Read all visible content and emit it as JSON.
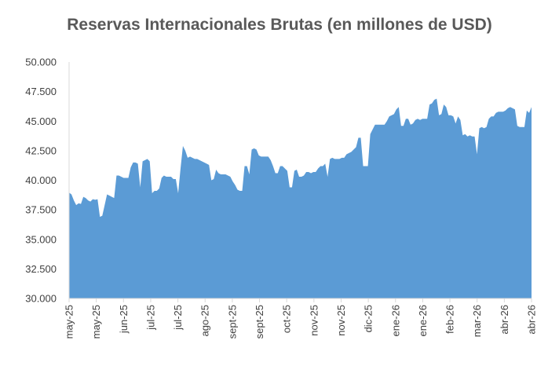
{
  "chart_data": {
    "type": "area",
    "title": "Reservas Internacionales Brutas (en millones de USD)",
    "xlabel": "",
    "ylabel": "",
    "ylim": [
      30000,
      50000
    ],
    "y_ticks": [
      "30.000",
      "32.500",
      "35.000",
      "37.500",
      "40.000",
      "42.500",
      "45.000",
      "47.500",
      "50.000"
    ],
    "y_tick_values": [
      30000,
      32500,
      35000,
      37500,
      40000,
      42500,
      45000,
      47500,
      50000
    ],
    "x_tick_labels": [
      "may-25",
      "may-25",
      "jun-25",
      "jul-25",
      "jul-25",
      "ago-25",
      "sept-25",
      "sept-25",
      "oct-25",
      "nov-25",
      "nov-25",
      "dic-25",
      "ene-26",
      "ene-26",
      "feb-26",
      "mar-26",
      "abr-26",
      "abr-26"
    ],
    "grid": false,
    "legend": "none",
    "fill_color": "#5B9BD5",
    "series": [
      {
        "values": [
          38950,
          38800,
          38300,
          37900,
          38050,
          38000,
          38600,
          38500,
          38300,
          38200,
          38400,
          38350,
          38400,
          36900,
          37000,
          37900,
          38800,
          38700,
          38600,
          38500,
          40400,
          40400,
          40300,
          40200,
          40200,
          40200,
          41100,
          41500,
          41500,
          41400,
          39400,
          41600,
          41700,
          41800,
          41600,
          38900,
          39100,
          39100,
          39300,
          40200,
          40400,
          40300,
          40300,
          40300,
          40100,
          40100,
          38900,
          41000,
          42900,
          42500,
          41900,
          42000,
          41900,
          41800,
          41800,
          41700,
          41600,
          41500,
          41400,
          41300,
          40000,
          40100,
          40900,
          40600,
          40500,
          40500,
          40500,
          40400,
          40300,
          39900,
          39600,
          39200,
          39100,
          39100,
          41200,
          41200,
          40500,
          42600,
          42700,
          42600,
          42100,
          42000,
          42000,
          42000,
          42000,
          41700,
          41200,
          40600,
          40600,
          41200,
          41200,
          41000,
          40800,
          39400,
          39400,
          40800,
          40900,
          40300,
          40300,
          40400,
          40700,
          40700,
          40600,
          40700,
          40700,
          41000,
          41200,
          41200,
          41400,
          40300,
          41800,
          41900,
          41800,
          41800,
          41800,
          41900,
          41900,
          42200,
          42300,
          42400,
          42600,
          42800,
          43600,
          43600,
          41200,
          41200,
          41200,
          43900,
          44300,
          44700,
          44700,
          44700,
          44700,
          44700,
          45000,
          45400,
          45500,
          45600,
          46000,
          46200,
          44600,
          44600,
          45200,
          45200,
          44700,
          44800,
          45100,
          45200,
          45100,
          45200,
          45200,
          45200,
          46400,
          46500,
          46800,
          46900,
          45500,
          45600,
          46400,
          46200,
          45500,
          45500,
          45400,
          44800,
          45400,
          45100,
          43800,
          43900,
          43700,
          43800,
          43700,
          43700,
          42200,
          44400,
          44500,
          44400,
          44500,
          45200,
          45400,
          45400,
          45700,
          45800,
          45800,
          45800,
          45900,
          46100,
          46200,
          46100,
          46000,
          44600,
          44500,
          44500,
          44500,
          45900,
          45700,
          46200
        ]
      }
    ]
  }
}
